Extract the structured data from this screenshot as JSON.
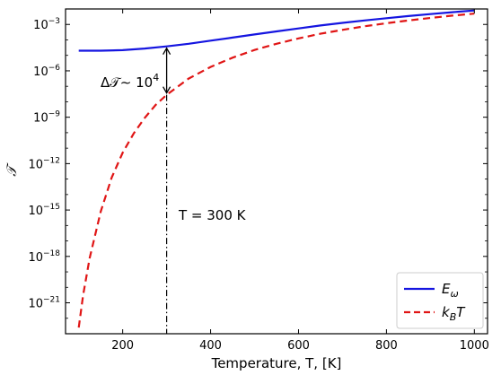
{
  "chart_data": {
    "type": "line",
    "xlabel": "Temperature, T, [K]",
    "ylabel": "𝒯",
    "xlim": [
      70,
      1030
    ],
    "ylog": true,
    "ylim_exp": [
      -23,
      -2
    ],
    "x_ticks": [
      200,
      400,
      600,
      800,
      1000
    ],
    "y_tick_exps": [
      -21,
      -18,
      -15,
      -12,
      -9,
      -6,
      -3
    ],
    "legend": "bottom-right",
    "grid": false,
    "series": [
      {
        "name": "E_ω",
        "color": "#1515e0",
        "style": "solid",
        "x": [
          100,
          150,
          200,
          250,
          300,
          350,
          400,
          450,
          500,
          550,
          600,
          650,
          700,
          750,
          800,
          850,
          900,
          950,
          1000
        ],
        "y_exp": [
          -4.7,
          -4.7,
          -4.66,
          -4.56,
          -4.42,
          -4.25,
          -4.05,
          -3.85,
          -3.65,
          -3.45,
          -3.26,
          -3.07,
          -2.9,
          -2.74,
          -2.6,
          -2.46,
          -2.33,
          -2.21,
          -2.1
        ]
      },
      {
        "name": "k_B T",
        "color": "#e01515",
        "style": "dashed",
        "x": [
          100,
          110,
          125,
          150,
          175,
          200,
          225,
          250,
          275,
          300,
          350,
          400,
          450,
          500,
          550,
          600,
          650,
          700,
          750,
          800,
          850,
          900,
          950,
          1000
        ],
        "y_exp": [
          -22.6,
          -20.5,
          -18.1,
          -15.1,
          -12.9,
          -11.3,
          -10.05,
          -9.05,
          -8.2,
          -7.55,
          -6.5,
          -5.75,
          -5.15,
          -4.65,
          -4.25,
          -3.9,
          -3.6,
          -3.35,
          -3.12,
          -2.92,
          -2.74,
          -2.58,
          -2.43,
          -2.3
        ]
      }
    ],
    "annotations": {
      "arrow_x": 300,
      "arrow_y_exp": [
        -4.42,
        -7.55
      ],
      "dashdot_x": 300,
      "dashdot_y_exp": [
        -7.55,
        -23
      ],
      "delta_prefix": "Δ𝒯∼ 10",
      "delta_exp": "4",
      "temp_label": "T = 300 K"
    },
    "legend_entries": [
      {
        "label": "E",
        "sub": "ω"
      },
      {
        "label": "k",
        "sub": "B",
        "suffix": "T"
      }
    ]
  }
}
